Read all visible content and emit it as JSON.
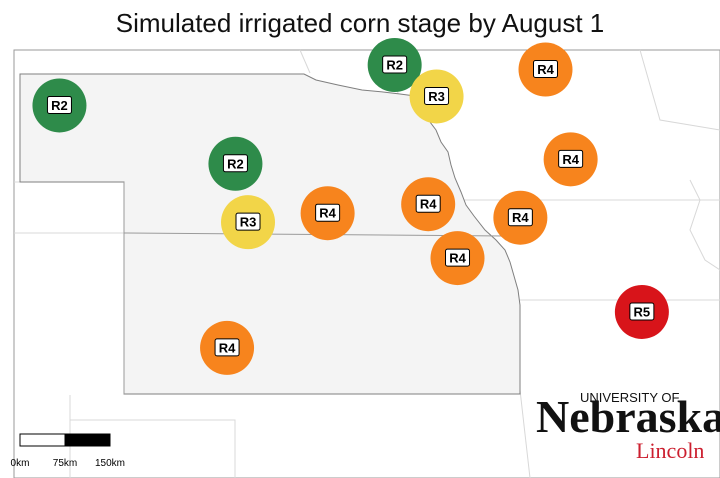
{
  "title": "Simulated irrigated corn stage by August 1",
  "colors": {
    "R2": "#2e8b4a",
    "R3": "#f2d548",
    "R4": "#f7841d",
    "R5": "#d8141a",
    "state_fill": "#f4f4f4",
    "border": "#7f7f7f",
    "neighbor_border": "#d8d8d8"
  },
  "stations": [
    {
      "label": "R2",
      "stage": "R2",
      "lon": -103.3,
      "lat": 42.2
    },
    {
      "label": "R2",
      "stage": "R2",
      "lon": -99.3,
      "lat": 42.65
    },
    {
      "label": "R3",
      "stage": "R3",
      "lon": -98.8,
      "lat": 42.3
    },
    {
      "label": "R4",
      "stage": "R4",
      "lon": -97.5,
      "lat": 42.6
    },
    {
      "label": "R2",
      "stage": "R2",
      "lon": -101.2,
      "lat": 41.55
    },
    {
      "label": "R4",
      "stage": "R4",
      "lon": -97.2,
      "lat": 41.6
    },
    {
      "label": "R3",
      "stage": "R3",
      "lon": -101.05,
      "lat": 40.9
    },
    {
      "label": "R4",
      "stage": "R4",
      "lon": -100.1,
      "lat": 41.0
    },
    {
      "label": "R4",
      "stage": "R4",
      "lon": -98.9,
      "lat": 41.1
    },
    {
      "label": "R4",
      "stage": "R4",
      "lon": -97.8,
      "lat": 40.95
    },
    {
      "label": "R4",
      "stage": "R4",
      "lon": -98.55,
      "lat": 40.5
    },
    {
      "label": "R5",
      "stage": "R5",
      "lon": -96.35,
      "lat": 39.9
    },
    {
      "label": "R4",
      "stage": "R4",
      "lon": -101.3,
      "lat": 39.5
    }
  ],
  "scale_bar": {
    "labels": [
      "0km",
      "75km",
      "150km"
    ]
  },
  "logo": {
    "line1": "UNIVERSITY OF",
    "line2": "Nebraska",
    "line3": "Lincoln"
  }
}
